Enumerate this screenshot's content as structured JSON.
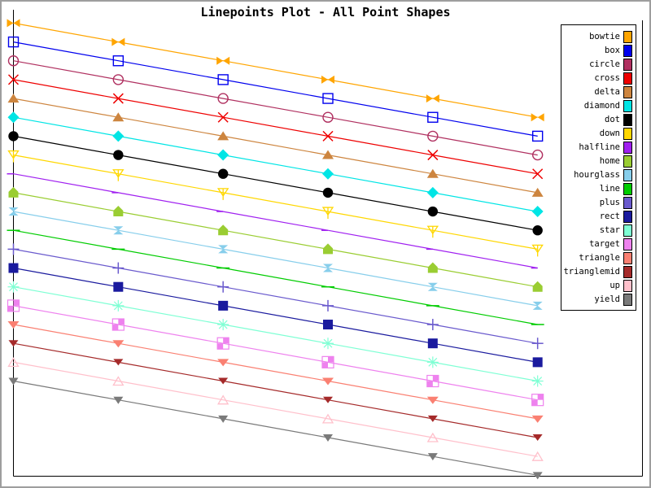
{
  "window": {
    "background": "#ffffff",
    "frame_color": "#9e9e9e"
  },
  "chart_data": {
    "type": "line",
    "variant": "linespoints",
    "title": "Linepoints Plot - All Point Shapes",
    "xlabel": "",
    "ylabel": "",
    "grid": false,
    "axis_ticks": "none",
    "frame_sides": [
      "left",
      "bottom",
      "right"
    ],
    "legend_position": "right",
    "x": [
      0,
      1,
      2,
      3,
      4,
      5
    ],
    "xlim": [
      0,
      6
    ],
    "ylim": [
      -4.05,
      20.65
    ],
    "series": [
      {
        "name": "bowtie",
        "shape": "bowtie",
        "color": "#FFA500",
        "values": [
          20,
          19,
          18,
          17,
          16,
          15
        ]
      },
      {
        "name": "box",
        "shape": "box",
        "color": "#0000EE",
        "values": [
          19,
          18,
          17,
          16,
          15,
          14
        ]
      },
      {
        "name": "circle",
        "shape": "circle",
        "color": "#B03060",
        "values": [
          18,
          17,
          16,
          15,
          14,
          13
        ]
      },
      {
        "name": "cross",
        "shape": "cross",
        "color": "#EE0000",
        "values": [
          17,
          16,
          15,
          14,
          13,
          12
        ]
      },
      {
        "name": "delta",
        "shape": "delta",
        "color": "#CD853F",
        "values": [
          16,
          15,
          14,
          13,
          12,
          11
        ]
      },
      {
        "name": "diamond",
        "shape": "diamond",
        "color": "#00E5E5",
        "values": [
          15,
          14,
          13,
          12,
          11,
          10
        ]
      },
      {
        "name": "dot",
        "shape": "dot",
        "color": "#000000",
        "values": [
          14,
          13,
          12,
          11,
          10,
          9
        ]
      },
      {
        "name": "down",
        "shape": "down",
        "color": "#FFD700",
        "values": [
          13,
          12,
          11,
          10,
          9,
          8
        ]
      },
      {
        "name": "halfline",
        "shape": "halfline",
        "color": "#A020F0",
        "values": [
          12,
          11,
          10,
          9,
          8,
          7
        ]
      },
      {
        "name": "home",
        "shape": "home",
        "color": "#9ACD32",
        "values": [
          11,
          10,
          9,
          8,
          7,
          6
        ]
      },
      {
        "name": "hourglass",
        "shape": "hourglass",
        "color": "#87CEEB",
        "values": [
          10,
          9,
          8,
          7,
          6,
          5
        ]
      },
      {
        "name": "line",
        "shape": "line",
        "color": "#00CC00",
        "values": [
          9,
          8,
          7,
          6,
          5,
          4
        ]
      },
      {
        "name": "plus",
        "shape": "plus",
        "color": "#6A5ACD",
        "values": [
          8,
          7,
          6,
          5,
          4,
          3
        ]
      },
      {
        "name": "rect",
        "shape": "rect",
        "color": "#1A1A9E",
        "values": [
          7,
          6,
          5,
          4,
          3,
          2
        ]
      },
      {
        "name": "star",
        "shape": "star",
        "color": "#7FFFD4",
        "values": [
          6,
          5,
          4,
          3,
          2,
          1
        ]
      },
      {
        "name": "target",
        "shape": "target",
        "color": "#EE82EE",
        "values": [
          5,
          4,
          3,
          2,
          1,
          0
        ]
      },
      {
        "name": "triangle",
        "shape": "triangle",
        "color": "#FA8072",
        "values": [
          4,
          3,
          2,
          1,
          0,
          -1
        ]
      },
      {
        "name": "trianglemid",
        "shape": "trianglemid",
        "color": "#A52A2A",
        "values": [
          3,
          2,
          1,
          0,
          -1,
          -2
        ]
      },
      {
        "name": "up",
        "shape": "up",
        "color": "#FFC0CB",
        "values": [
          2,
          1,
          0,
          -1,
          -2,
          -3
        ]
      },
      {
        "name": "yield",
        "shape": "yield",
        "color": "#7A7A7A",
        "values": [
          1,
          0,
          -1,
          -2,
          -3,
          -4
        ]
      }
    ]
  },
  "legend": {
    "items": [
      "bowtie",
      "box",
      "circle",
      "cross",
      "delta",
      "diamond",
      "dot",
      "down",
      "halfline",
      "home",
      "hourglass",
      "line",
      "plus",
      "rect",
      "star",
      "target",
      "triangle",
      "trianglemid",
      "up",
      "yield"
    ]
  }
}
